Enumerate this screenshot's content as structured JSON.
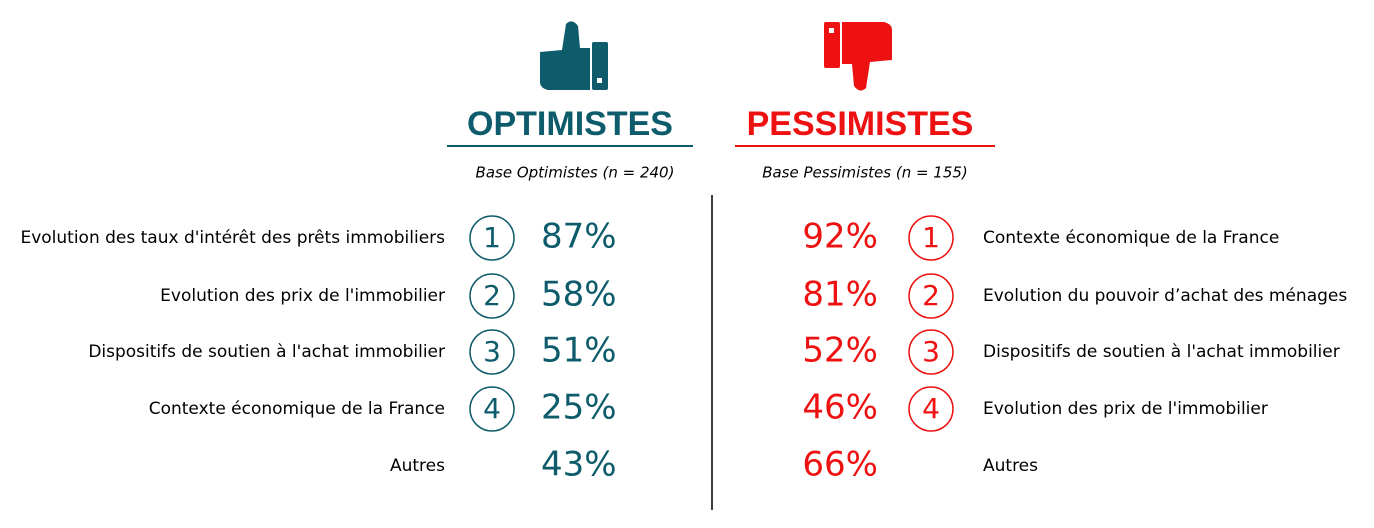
{
  "optimists": {
    "title": "OPTIMISTES",
    "base": "Base Optimistes (n = 240)",
    "items": [
      {
        "rank": "1",
        "label": "Evolution des taux d'intérêt des prêts immobiliers",
        "value": "87%"
      },
      {
        "rank": "2",
        "label": "Evolution des prix de l'immobilier",
        "value": "58%"
      },
      {
        "rank": "3",
        "label": "Dispositifs de soutien à l'achat immobilier",
        "value": "51%"
      },
      {
        "rank": "4",
        "label": "Contexte économique de la France",
        "value": "25%"
      },
      {
        "label": "Autres",
        "value": "43%"
      }
    ]
  },
  "pessimists": {
    "title": "PESSIMISTES",
    "base": "Base Pessimistes (n = 155)",
    "items": [
      {
        "rank": "1",
        "label": "Contexte économique de la France",
        "value": "92%"
      },
      {
        "rank": "2",
        "label": "Evolution du pouvoir d’achat des ménages",
        "value": "81%"
      },
      {
        "rank": "3",
        "label": "Dispositifs de soutien à l'achat immobilier",
        "value": "52%"
      },
      {
        "rank": "4",
        "label": "Evolution des prix de l'immobilier",
        "value": "46%"
      },
      {
        "label": "Autres",
        "value": "66%"
      }
    ]
  }
}
